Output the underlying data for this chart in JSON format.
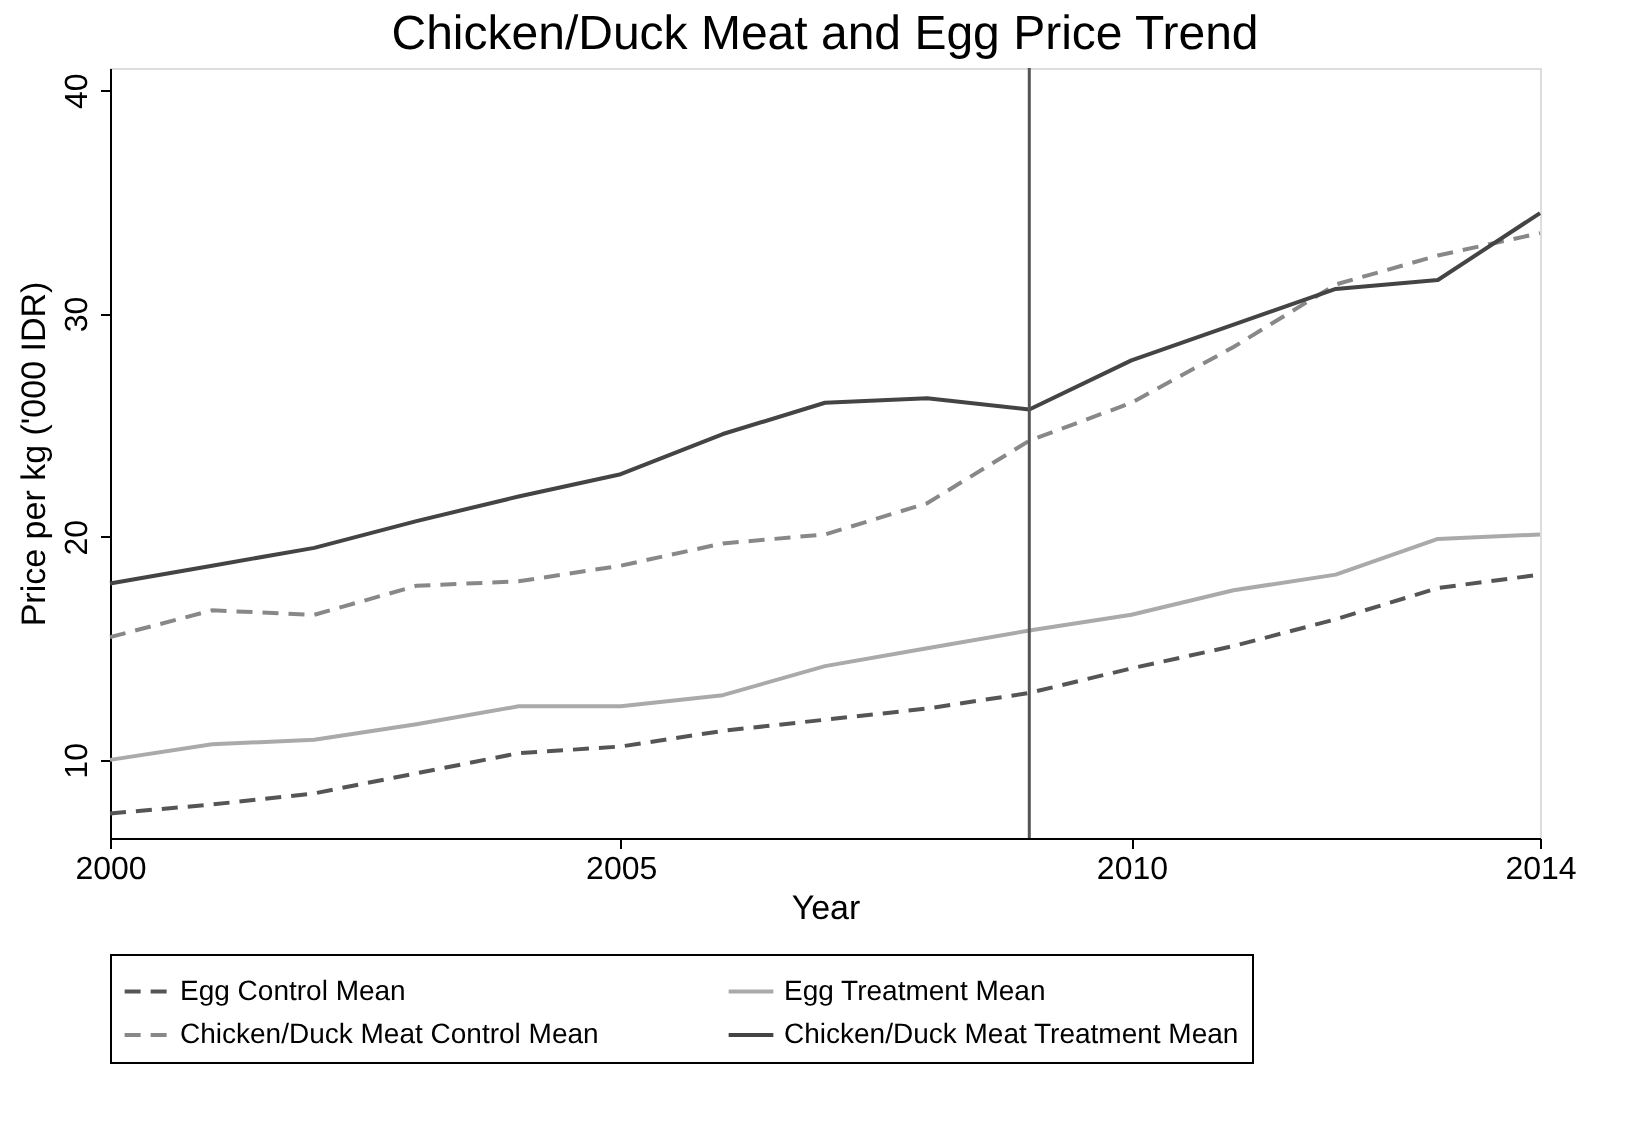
{
  "chart_data": {
    "type": "line",
    "title": "Chicken/Duck Meat and Egg Price Trend",
    "xlabel": "Year",
    "ylabel": "Price per kg ('000 IDR)",
    "x": [
      2000,
      2001,
      2002,
      2003,
      2004,
      2005,
      2006,
      2007,
      2008,
      2009,
      2010,
      2011,
      2012,
      2013,
      2014
    ],
    "series": [
      {
        "name": "Egg Control Mean",
        "color": "#555555",
        "line_style": "dashed",
        "values": [
          7.6,
          8.0,
          8.5,
          9.4,
          10.3,
          10.6,
          11.3,
          11.8,
          12.3,
          13.0,
          14.1,
          15.1,
          16.3,
          17.7,
          18.3
        ]
      },
      {
        "name": "Egg Treatment Mean",
        "color": "#aaaaaa",
        "line_style": "solid",
        "values": [
          10.0,
          10.7,
          10.9,
          11.6,
          12.4,
          12.4,
          12.9,
          14.2,
          15.0,
          15.8,
          16.5,
          17.6,
          18.3,
          19.9,
          20.1
        ]
      },
      {
        "name": "Chicken/Duck Meat Control Mean",
        "color": "#888888",
        "line_style": "dashed",
        "values": [
          15.5,
          16.7,
          16.5,
          17.8,
          18.0,
          18.7,
          19.7,
          20.1,
          21.5,
          24.3,
          26.0,
          28.5,
          31.3,
          32.6,
          33.6
        ]
      },
      {
        "name": "Chicken/Duck Meat Treatment Mean",
        "color": "#444444",
        "line_style": "solid",
        "values": [
          17.9,
          18.7,
          19.5,
          20.7,
          21.8,
          22.8,
          24.6,
          26.0,
          26.2,
          25.7,
          27.9,
          29.5,
          31.1,
          31.5,
          34.5
        ]
      }
    ],
    "xlim": [
      2000,
      2014
    ],
    "xticks": [
      2000,
      2005,
      2010,
      2014
    ],
    "ylim": [
      6.5,
      41
    ],
    "yticks": [
      10,
      20,
      30,
      40
    ],
    "ref_lines": [
      {
        "axis": "x",
        "value": 2009,
        "color": "#555555"
      }
    ],
    "grid": false,
    "legend": "bottom",
    "marker": "none"
  }
}
